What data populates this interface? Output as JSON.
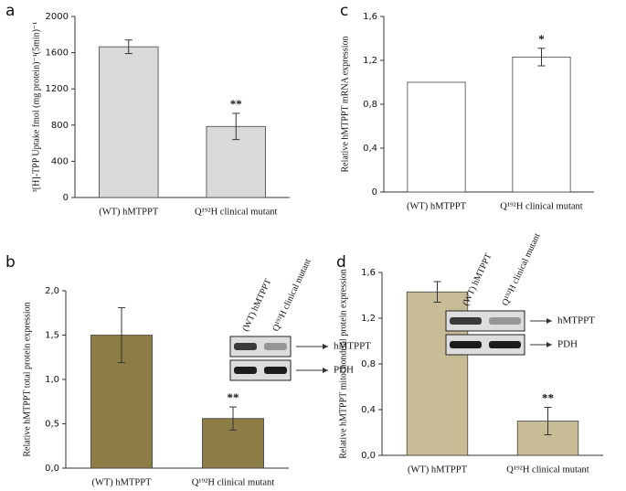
{
  "chart_data": [
    {
      "type": "bar",
      "panel": "a",
      "y_label": "³[H]-TPP Uptake fmol (mg protein)⁻¹(5min)⁻¹",
      "categories": [
        "(WT) hMTPPT",
        "Q¹⁹²H clinical mutant"
      ],
      "values": [
        1665,
        785
      ],
      "errors": [
        75,
        145
      ],
      "significance": [
        null,
        "**"
      ],
      "color": "#d9d9d9",
      "ylim": [
        0,
        2000
      ],
      "yticks": [
        0,
        400,
        800,
        1200,
        1600,
        2000
      ]
    },
    {
      "type": "bar",
      "panel": "c",
      "y_label": "Relative hMTPPT mRNA expression",
      "categories": [
        "(WT) hMTPPT",
        "Q¹⁹²H clinical mutant"
      ],
      "values": [
        1.0,
        1.23
      ],
      "errors": [
        0,
        0.08
      ],
      "significance": [
        null,
        "*"
      ],
      "color": "#ffffff",
      "ylim": [
        0,
        1.6
      ],
      "yticks": [
        0,
        {
          "value": 0.4,
          "label": "0,4"
        },
        {
          "value": 0.8,
          "label": "0,8"
        },
        {
          "value": 1.2,
          "label": "1,2"
        },
        {
          "value": 1.6,
          "label": "1,6"
        }
      ]
    },
    {
      "type": "bar",
      "panel": "b",
      "y_label": "Relative hMTPPT total protein expression",
      "categories": [
        "(WT) hMTPPT",
        "Q¹⁹²H clinical mutant"
      ],
      "values": [
        1.5,
        0.56
      ],
      "errors": [
        0.31,
        0.13
      ],
      "significance": [
        null,
        "**"
      ],
      "color": "#8b7d45",
      "ylim": [
        0,
        2.0
      ],
      "yticks": [
        {
          "value": 0,
          "label": "0,0"
        },
        {
          "value": 0.5,
          "label": "0,5"
        },
        {
          "value": 1.0,
          "label": "1,0"
        },
        {
          "value": 1.5,
          "label": "1,5"
        },
        {
          "value": 2.0,
          "label": "2,0"
        }
      ],
      "blot": {
        "lanes": [
          "(WT) hMTPPT",
          "Q¹⁹²H clinical mutant"
        ],
        "bands": [
          "hMTPPT",
          "PDH"
        ]
      }
    },
    {
      "type": "bar",
      "panel": "d",
      "y_label": "Relative hMTPPT mitochondrial protein expression",
      "categories": [
        "(WT) hMTPPT",
        "Q¹⁹²H clinical mutant"
      ],
      "values": [
        1.43,
        0.3
      ],
      "errors": [
        0.09,
        0.12
      ],
      "significance": [
        null,
        "**"
      ],
      "color": "#c8bc96",
      "ylim": [
        0,
        1.6
      ],
      "yticks": [
        {
          "value": 0,
          "label": "0,0"
        },
        {
          "value": 0.4,
          "label": "0,4"
        },
        {
          "value": 0.8,
          "label": "0,8"
        },
        {
          "value": 1.2,
          "label": "1,2"
        },
        {
          "value": 1.6,
          "label": "1,6"
        }
      ],
      "blot": {
        "lanes": [
          "(WT) hMTPPT",
          "Q¹⁹²H clinical mutant"
        ],
        "bands": [
          "hMTPPT",
          "PDH"
        ]
      }
    }
  ]
}
